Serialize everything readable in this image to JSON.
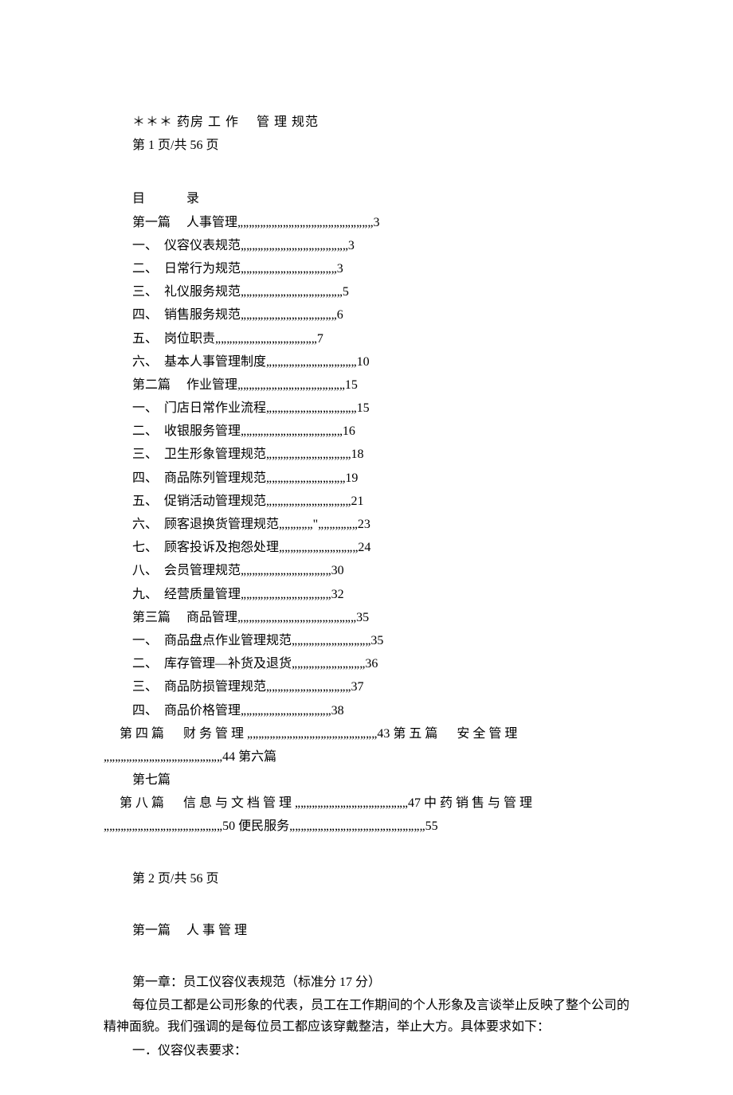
{
  "header": {
    "title": "＊＊＊ 药房  工  作　  管  理  规范",
    "page1": "第 1 页/共 56 页"
  },
  "toc": {
    "title": "目　  　录",
    "lines": [
      {
        "text": "第一篇　  人事管理„„„„„„„„„„„„„„„„„„„„„„„„3",
        "indent": false
      },
      {
        "text": "一、　仪容仪表规范„„„„„„„„„„„„„„„„„„„3",
        "indent": true
      },
      {
        "text": "二、　日常行为规范„„„„„„„„„„„„„„„„„3",
        "indent": true
      },
      {
        "text": "三、　礼仪服务规范„„„„„„„„„„„„„„„„„„5",
        "indent": true
      },
      {
        "text": "四、　销售服务规范„„„„„„„„„„„„„„„„„6",
        "indent": true
      },
      {
        "text": "五、　岗位职责„„„„„„„„„„„„„„„„„„7",
        "indent": true
      },
      {
        "text": "六、　基本人事管理制度„„„„„„„„„„„„„„„„10",
        "indent": true
      },
      {
        "text": "第二篇　  作业管理„„„„„„„„„„„„„„„„„„„15",
        "indent": false
      },
      {
        "text": "一、　门店日常作业流程„„„„„„„„„„„„„„„„15",
        "indent": true
      },
      {
        "text": "二、　收银服务管理„„„„„„„„„„„„„„„„„„16",
        "indent": true
      },
      {
        "text": "三、　卫生形象管理规范„„„„„„„„„„„„„„„18",
        "indent": true
      },
      {
        "text": "四、　商品陈列管理规范„„„„„„„„„„„„„„19",
        "indent": true
      },
      {
        "text": "五、　促销活动管理规范„„„„„„„„„„„„„„„21",
        "indent": true
      },
      {
        "text": "六、　顾客退换货管理规范„„„„„„\"„„„„„„„23",
        "indent": true
      },
      {
        "text": "七、　顾客投诉及抱怨处理„„„„„„„„„„„„„„24",
        "indent": true
      },
      {
        "text": "八、　会员管理规范„„„„„„„„„„„„„„„„30",
        "indent": true
      },
      {
        "text": "九、　经营质量管理„„„„„„„„„„„„„„„„32",
        "indent": true
      },
      {
        "text": "第三篇　  商品管理„„„„„„„„„„„„„„„„„„„„„35",
        "indent": false
      },
      {
        "text": "一、　商品盘点作业管理规范„„„„„„„„„„„„„„35",
        "indent": true
      },
      {
        "text": "二、　库存管理—补货及退货„„„„„„„„„„„„„36",
        "indent": true
      },
      {
        "text": "三、　商品防损管理规范„„„„„„„„„„„„„„„37",
        "indent": true
      },
      {
        "text": "四、　商品价格管理„„„„„„„„„„„„„„„„38",
        "indent": true
      }
    ],
    "mixed_line_1": "　  第 四 篇 　   财 务 管 理 „„„„„„„„„„„„„„„„„„„„„„„43   第 五 篇 　   安 全 管 理",
    "mixed_line_2": "„„„„„„„„„„„„„„„„„„„„„44  第六篇",
    "mixed_line_3": "第七篇",
    "mixed_line_4": "　  第 八 篇 　  信 息 与 文 档 管 理 „„„„„„„„„„„„„„„„„„„„47   中 药 销 售 与 管 理",
    "mixed_line_5": "„„„„„„„„„„„„„„„„„„„„„50  便民服务„„„„„„„„„„„„„„„„„„„„„„„„55"
  },
  "page2": "第 2 页/共 56 页",
  "chapter": {
    "title": "第一篇　  人  事  管  理",
    "section_title": "第一章：员工仪容仪表规范（标准分 17 分）",
    "para1": "每位员工都是公司形象的代表，员工在工作期间的个人形象及言谈举止反映了整个公司的精神面貌。我们强调的是每位员工都应该穿戴整洁，举止大方。具体要求如下：",
    "sub1": "一．仪容仪表要求："
  },
  "style": {
    "font_family": "SimSun",
    "font_size_pt": 12,
    "text_color": "#000000",
    "background_color": "#ffffff",
    "line_height": 1.7
  }
}
